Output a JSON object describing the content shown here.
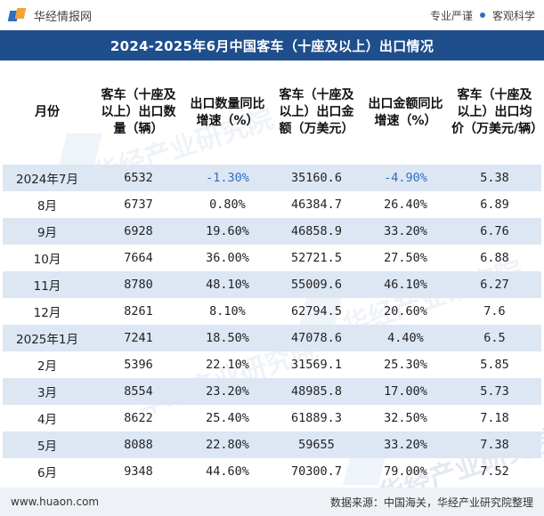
{
  "header": {
    "brand_name": "华经情报网",
    "tagline_1": "专业严谨",
    "tagline_2": "客观科学"
  },
  "title": "2024-2025年6月中国客车（十座及以上）出口情况",
  "table": {
    "columns": [
      "月份",
      "客车（十座及以上）出口数量（辆）",
      "出口数量同比增速（%）",
      "客车（十座及以上）出口金额（万美元）",
      "出口金额同比增速（%）",
      "客车（十座及以上）出口均价（万美元/辆）"
    ],
    "rows": [
      [
        "2024年7月",
        "6532",
        "-1.30%",
        "35160.6",
        "-4.90%",
        "5.38"
      ],
      [
        "8月",
        "6737",
        "0.80%",
        "46384.7",
        "26.40%",
        "6.89"
      ],
      [
        "9月",
        "6928",
        "19.60%",
        "46858.9",
        "33.20%",
        "6.76"
      ],
      [
        "10月",
        "7664",
        "36.00%",
        "52721.5",
        "27.50%",
        "6.88"
      ],
      [
        "11月",
        "8780",
        "48.10%",
        "55009.6",
        "46.10%",
        "6.27"
      ],
      [
        "12月",
        "8261",
        "8.10%",
        "62794.5",
        "20.60%",
        "7.6"
      ],
      [
        "2025年1月",
        "7241",
        "18.50%",
        "47078.6",
        "4.40%",
        "6.5"
      ],
      [
        "2月",
        "5396",
        "22.10%",
        "31569.1",
        "25.30%",
        "5.85"
      ],
      [
        "3月",
        "8554",
        "23.20%",
        "48985.8",
        "17.00%",
        "5.73"
      ],
      [
        "4月",
        "8622",
        "25.40%",
        "61889.3",
        "32.50%",
        "7.18"
      ],
      [
        "5月",
        "8088",
        "22.80%",
        "59655",
        "33.20%",
        "7.38"
      ],
      [
        "6月",
        "9348",
        "44.60%",
        "70300.7",
        "79.00%",
        "7.52"
      ]
    ]
  },
  "watermark_text": "华经产业研究院",
  "footer": {
    "url": "www.huaon.com",
    "source": "数据来源：中国海关，华经产业研究院整理"
  },
  "colors": {
    "title_bg": "#1f4e8c",
    "row_alt_bg": "#dde6f3",
    "negative_text": "#2f6fc0"
  }
}
